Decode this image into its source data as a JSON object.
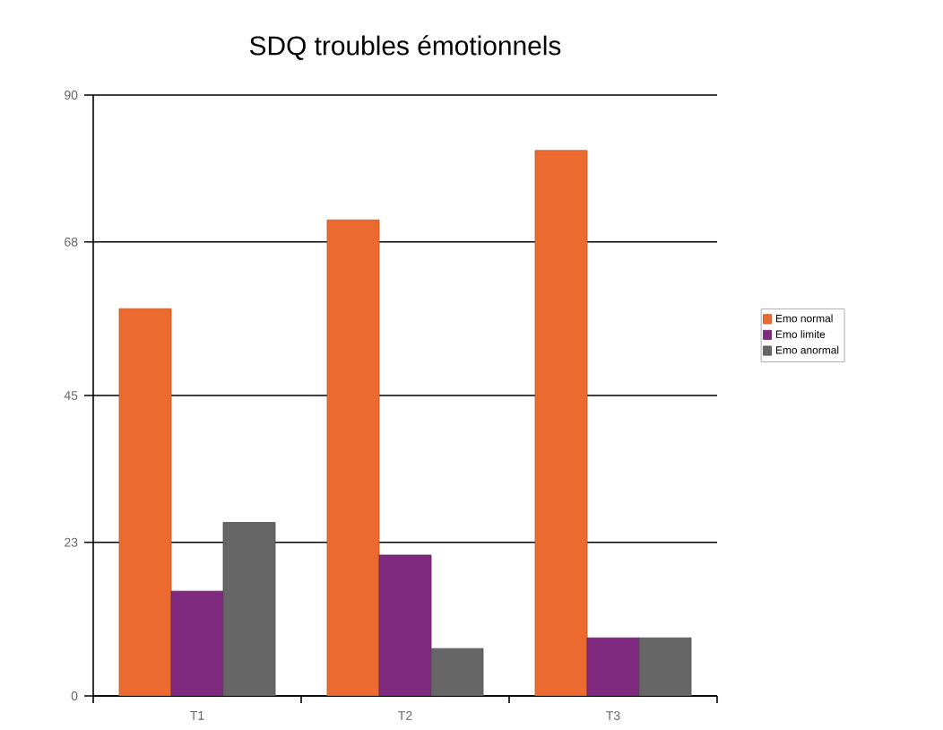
{
  "chart_data": {
    "type": "bar",
    "title": "SDQ troubles émotionnels",
    "categories": [
      "T1",
      "T2",
      "T3"
    ],
    "series": [
      {
        "name": "Emo normal",
        "color": "#ec6a30",
        "values": [
          58,
          71.3,
          81.7
        ]
      },
      {
        "name": "Emo limite",
        "color": "#7f2a7f",
        "values": [
          15.7,
          21.1,
          8.7
        ]
      },
      {
        "name": "Emo anormal",
        "color": "#666666",
        "values": [
          26,
          7.1,
          8.7
        ]
      }
    ],
    "ylim": [
      0,
      90
    ],
    "yticks": [
      0,
      23,
      45,
      68,
      90
    ],
    "grid": "y",
    "legend": "right"
  }
}
